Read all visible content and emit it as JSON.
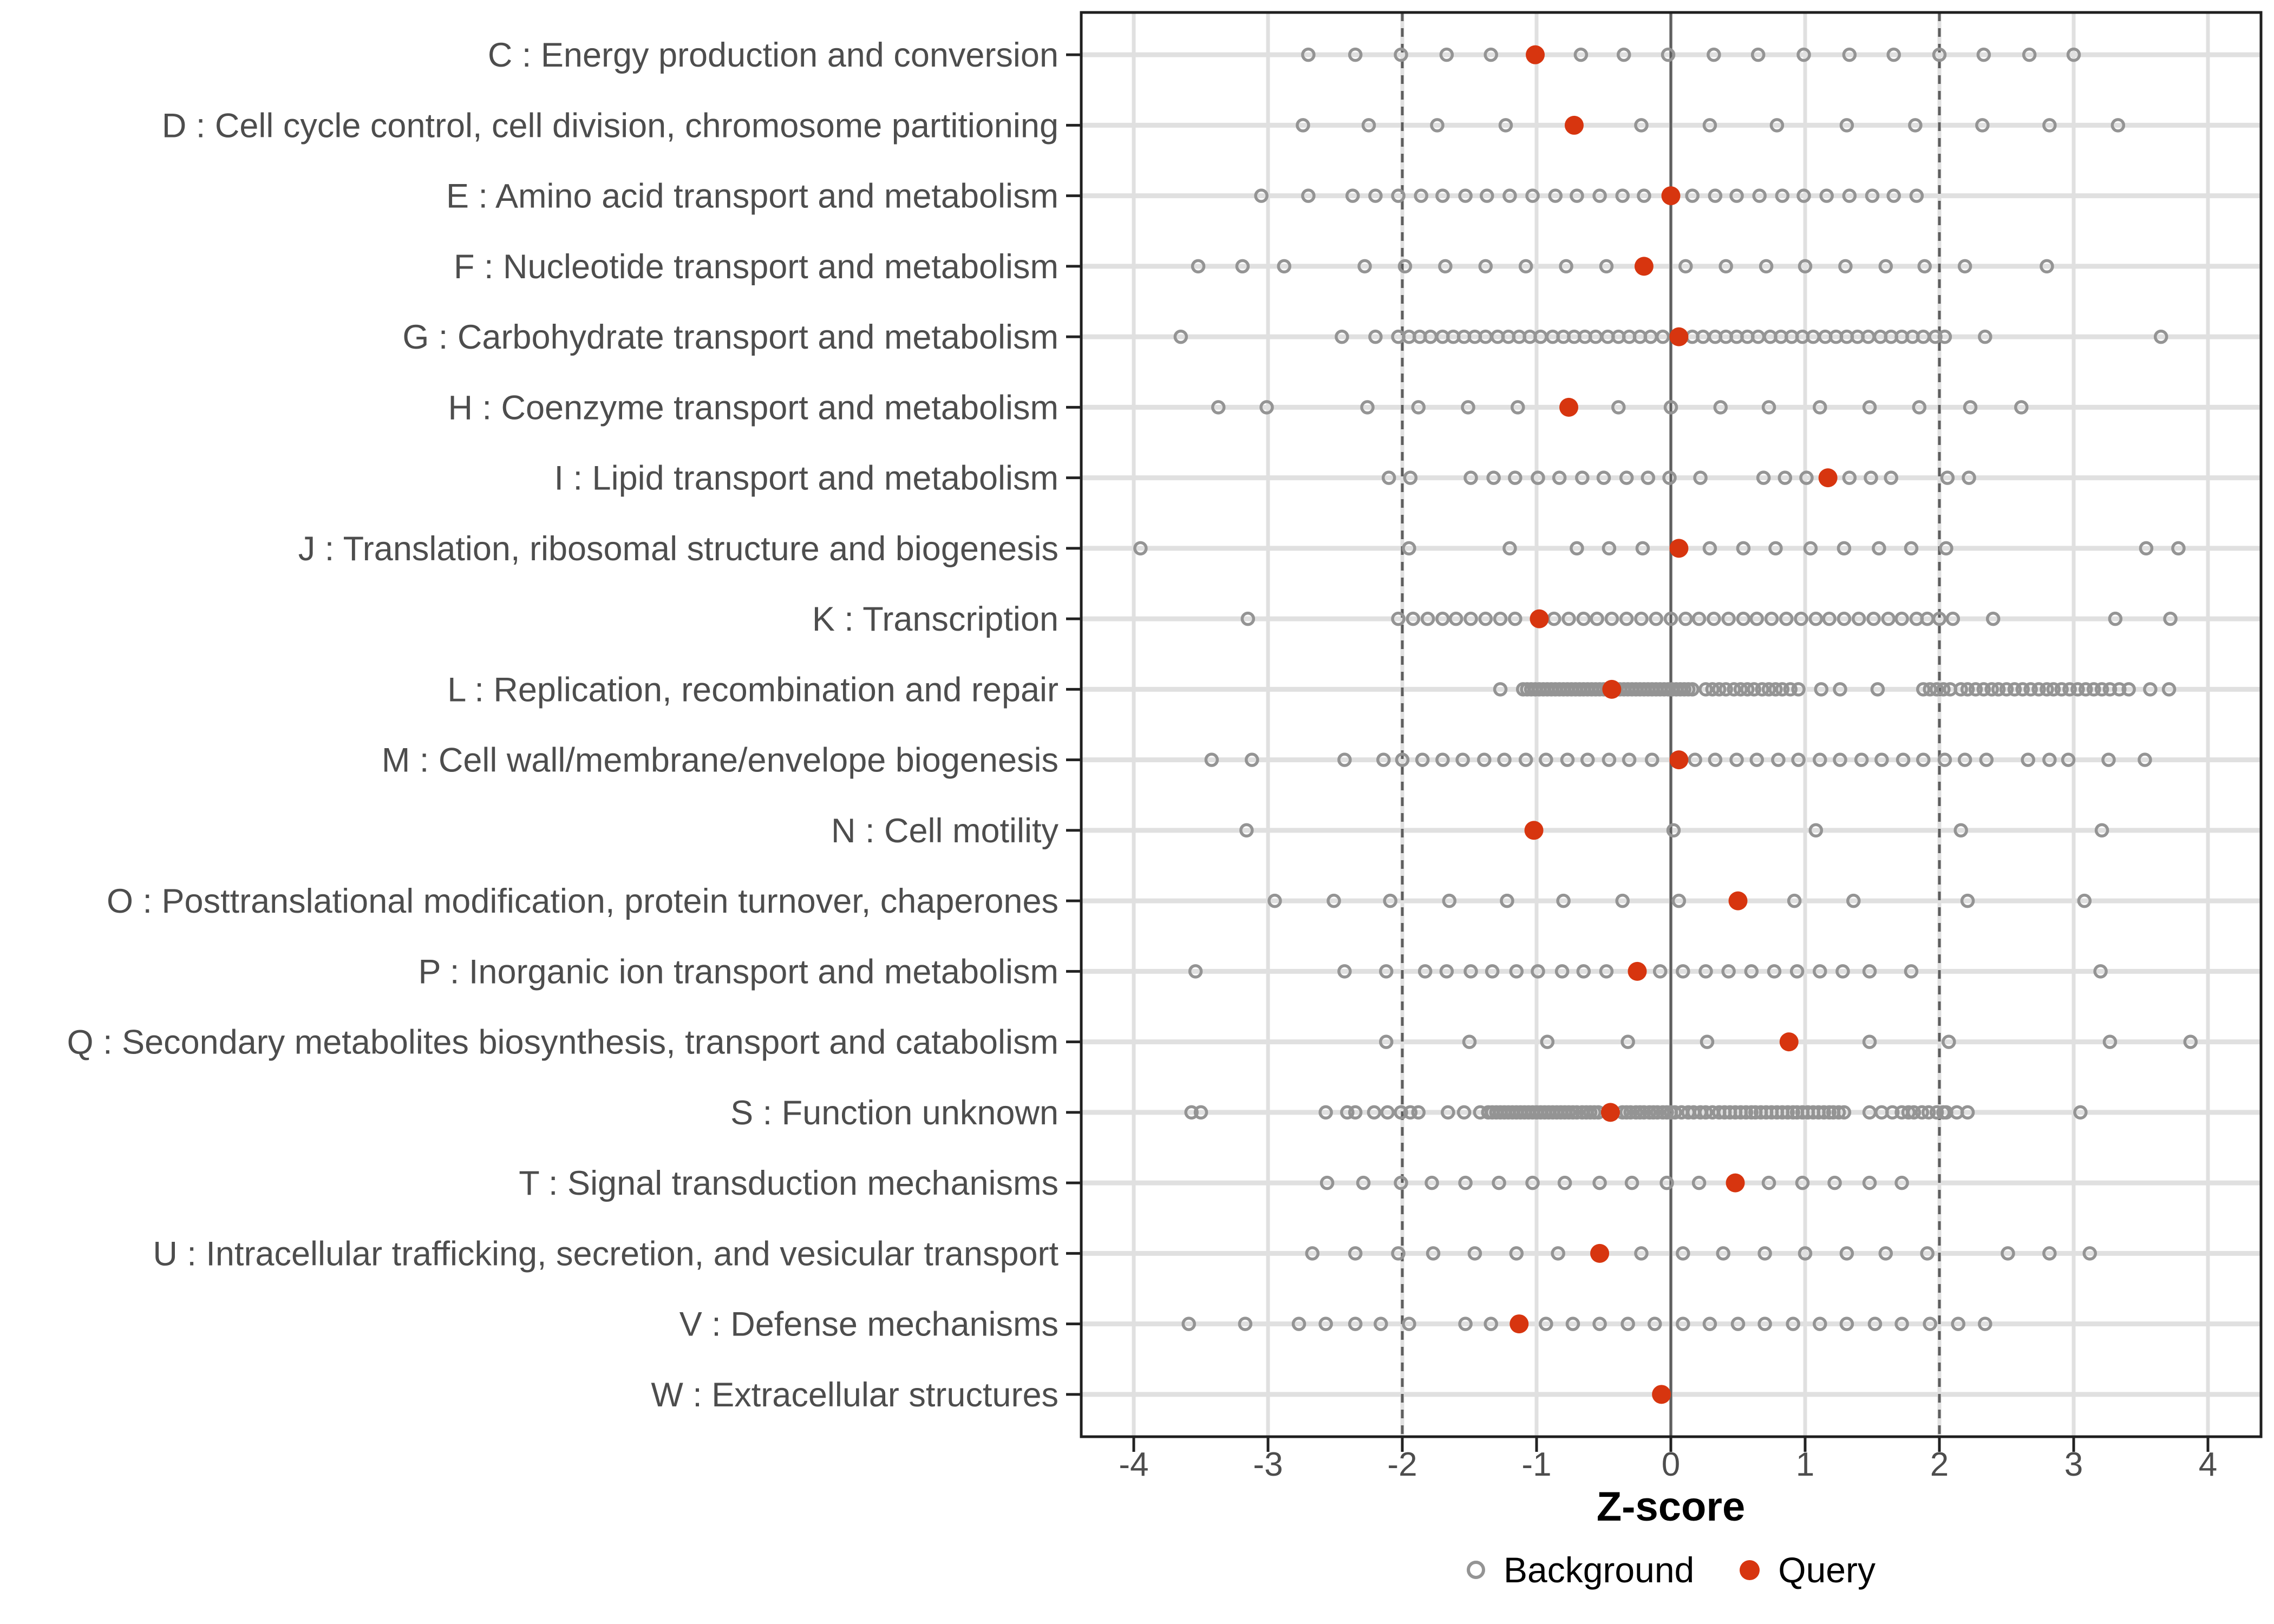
{
  "legend": {
    "background_label": "Background",
    "query_label": "Query"
  },
  "style": {
    "query_color": "#D7350F",
    "background_stroke": "#949494",
    "gridline_color": "#E0E0E0",
    "refline_color": "#5E5E5E",
    "axis_text_color": "#4D4D4D",
    "tick_color": "#222222",
    "panel_border_color": "#1F1F1F",
    "panel_background": "#FFFFFF"
  },
  "chart_data": {
    "type": "scatter",
    "title": "",
    "xlabel": "Z-score",
    "ylabel": "",
    "xlim": [
      -4.39,
      4.39
    ],
    "x_ticks": [
      -4,
      -3,
      -2,
      -1,
      0,
      1,
      2,
      3,
      4
    ],
    "grid": "major-vertical-and-row-lines",
    "legend_position": "bottom-center",
    "reference_lines": {
      "solid": [
        0
      ],
      "dashed": [
        -2,
        2
      ]
    },
    "series_legend": [
      "Background",
      "Query"
    ],
    "rows": [
      {
        "label": "C : Energy production and conversion",
        "query": -1.01,
        "background": [
          -2.7,
          -2.35,
          -2.01,
          -1.67,
          -1.34,
          -0.67,
          -0.35,
          -0.02,
          0.32,
          0.65,
          0.99,
          1.33,
          1.66,
          2.0,
          2.33,
          2.67,
          3.0
        ]
      },
      {
        "label": "D : Cell cycle control, cell division, chromosome partitioning",
        "query": -0.72,
        "background": [
          -2.74,
          -2.25,
          -1.74,
          -1.23,
          -0.22,
          0.29,
          0.79,
          1.31,
          1.82,
          2.32,
          2.82,
          3.33
        ]
      },
      {
        "label": "E : Amino acid transport and metabolism",
        "query": 0.0,
        "background": [
          -3.05,
          -2.7,
          -2.37,
          -2.2,
          -2.03,
          -1.86,
          -1.7,
          -1.53,
          -1.37,
          -1.2,
          -1.03,
          -0.86,
          -0.7,
          -0.53,
          -0.36,
          -0.2,
          0.16,
          0.33,
          0.49,
          0.66,
          0.83,
          0.99,
          1.16,
          1.33,
          1.5,
          1.66,
          1.83
        ]
      },
      {
        "label": "F : Nucleotide transport and metabolism",
        "query": -0.2,
        "background": [
          -3.52,
          -3.19,
          -2.88,
          -2.28,
          -1.98,
          -1.68,
          -1.38,
          -1.08,
          -0.78,
          -0.48,
          0.11,
          0.41,
          0.71,
          1.0,
          1.3,
          1.6,
          1.89,
          2.19,
          2.8
        ]
      },
      {
        "label": "G : Carbohydrate transport and metabolism",
        "query": 0.06,
        "background": [
          -3.65,
          -2.45,
          -2.2,
          -2.03,
          -1.95,
          -1.87,
          -1.79,
          -1.7,
          -1.62,
          -1.54,
          -1.46,
          -1.38,
          -1.29,
          -1.21,
          -1.13,
          -1.05,
          -0.97,
          -0.88,
          -0.8,
          -0.72,
          -0.64,
          -0.56,
          -0.47,
          -0.39,
          -0.31,
          -0.23,
          -0.15,
          -0.06,
          0.16,
          0.24,
          0.33,
          0.41,
          0.49,
          0.57,
          0.65,
          0.74,
          0.82,
          0.9,
          0.98,
          1.06,
          1.15,
          1.23,
          1.31,
          1.39,
          1.47,
          1.56,
          1.64,
          1.72,
          1.8,
          1.88,
          1.97,
          2.04,
          2.34,
          3.65
        ]
      },
      {
        "label": "H : Coenzyme transport and metabolism",
        "query": -0.76,
        "background": [
          -3.37,
          -3.01,
          -2.26,
          -1.88,
          -1.51,
          -1.14,
          -0.39,
          0.0,
          0.37,
          0.73,
          1.11,
          1.48,
          1.85,
          2.23,
          2.61
        ]
      },
      {
        "label": "I : Lipid transport and metabolism",
        "query": 1.17,
        "background": [
          -2.1,
          -1.94,
          -1.49,
          -1.32,
          -1.16,
          -0.99,
          -0.83,
          -0.66,
          -0.5,
          -0.33,
          -0.17,
          -0.01,
          0.22,
          0.69,
          0.85,
          1.01,
          1.33,
          1.49,
          1.64,
          2.06,
          2.22
        ]
      },
      {
        "label": "J : Translation, ribosomal structure and biogenesis",
        "query": 0.06,
        "background": [
          -3.95,
          -1.95,
          -1.2,
          -0.7,
          -0.46,
          -0.21,
          0.29,
          0.54,
          0.78,
          1.04,
          1.29,
          1.55,
          1.79,
          2.05,
          3.54,
          3.78
        ]
      },
      {
        "label": "K : Transcription",
        "query": -0.98,
        "background": [
          -3.15,
          -2.03,
          -1.92,
          -1.81,
          -1.7,
          -1.6,
          -1.49,
          -1.38,
          -1.27,
          -1.16,
          -0.87,
          -0.76,
          -0.65,
          -0.55,
          -0.44,
          -0.33,
          -0.22,
          -0.11,
          0.0,
          0.11,
          0.21,
          0.32,
          0.43,
          0.54,
          0.64,
          0.75,
          0.86,
          0.97,
          1.08,
          1.18,
          1.29,
          1.4,
          1.51,
          1.62,
          1.72,
          1.83,
          1.91,
          2.0,
          2.1,
          2.4,
          3.31,
          3.72
        ]
      },
      {
        "label": "L : Replication, recombination and repair",
        "query": -0.44,
        "background": [
          -1.27,
          -1.1,
          -1.07,
          -1.04,
          -1.01,
          -0.98,
          -0.95,
          -0.92,
          -0.89,
          -0.86,
          -0.83,
          -0.8,
          -0.77,
          -0.74,
          -0.71,
          -0.68,
          -0.65,
          -0.62,
          -0.59,
          -0.56,
          -0.53,
          -0.5,
          -0.47,
          -0.41,
          -0.38,
          -0.35,
          -0.32,
          -0.29,
          -0.26,
          -0.23,
          -0.2,
          -0.17,
          -0.14,
          -0.11,
          -0.08,
          -0.05,
          -0.02,
          0.01,
          0.04,
          0.07,
          0.1,
          0.13,
          0.16,
          0.26,
          0.31,
          0.36,
          0.41,
          0.47,
          0.52,
          0.57,
          0.62,
          0.68,
          0.73,
          0.78,
          0.83,
          0.89,
          0.95,
          1.12,
          1.26,
          1.54,
          1.88,
          1.93,
          1.98,
          2.03,
          2.08,
          2.16,
          2.21,
          2.27,
          2.33,
          2.39,
          2.44,
          2.5,
          2.56,
          2.62,
          2.68,
          2.74,
          2.8,
          2.85,
          2.91,
          2.97,
          3.03,
          3.09,
          3.15,
          3.21,
          3.27,
          3.34,
          3.41,
          3.57,
          3.71
        ]
      },
      {
        "label": "M : Cell wall/membrane/envelope biogenesis",
        "query": 0.06,
        "background": [
          -3.42,
          -3.12,
          -2.43,
          -2.14,
          -2.0,
          -1.85,
          -1.7,
          -1.55,
          -1.39,
          -1.24,
          -1.08,
          -0.93,
          -0.77,
          -0.62,
          -0.46,
          -0.31,
          -0.14,
          0.18,
          0.33,
          0.49,
          0.64,
          0.8,
          0.95,
          1.11,
          1.26,
          1.42,
          1.57,
          1.73,
          1.88,
          2.04,
          2.19,
          2.35,
          2.66,
          2.82,
          2.96,
          3.26,
          3.53
        ]
      },
      {
        "label": "N : Cell motility",
        "query": -1.02,
        "background": [
          -3.16,
          0.02,
          1.08,
          2.16,
          3.21
        ]
      },
      {
        "label": "O : Posttranslational modification, protein turnover, chaperones",
        "query": 0.5,
        "background": [
          -2.95,
          -2.51,
          -2.09,
          -1.65,
          -1.22,
          -0.8,
          -0.36,
          0.06,
          0.92,
          1.36,
          2.21,
          3.08
        ]
      },
      {
        "label": "P : Inorganic ion transport and metabolism",
        "query": -0.25,
        "background": [
          -3.54,
          -2.43,
          -2.12,
          -1.83,
          -1.67,
          -1.49,
          -1.33,
          -1.15,
          -0.99,
          -0.81,
          -0.65,
          -0.48,
          -0.08,
          0.09,
          0.26,
          0.43,
          0.6,
          0.77,
          0.94,
          1.11,
          1.28,
          1.48,
          1.79,
          3.2
        ]
      },
      {
        "label": "Q : Secondary metabolites biosynthesis, transport and catabolism",
        "query": 0.88,
        "background": [
          -2.12,
          -1.5,
          -0.92,
          -0.32,
          0.27,
          1.48,
          2.07,
          3.27,
          3.87
        ]
      },
      {
        "label": "S : Function unknown",
        "query": -0.45,
        "background": [
          -3.57,
          -3.5,
          -2.57,
          -2.41,
          -2.35,
          -2.21,
          -2.11,
          -2.01,
          -1.94,
          -1.88,
          -1.66,
          -1.54,
          -1.42,
          -1.36,
          -1.33,
          -1.3,
          -1.27,
          -1.24,
          -1.21,
          -1.18,
          -1.15,
          -1.12,
          -1.09,
          -1.06,
          -1.03,
          -1.0,
          -0.97,
          -0.94,
          -0.91,
          -0.88,
          -0.85,
          -0.82,
          -0.79,
          -0.76,
          -0.73,
          -0.7,
          -0.66,
          -0.63,
          -0.6,
          -0.57,
          -0.54,
          -0.36,
          -0.33,
          -0.3,
          -0.26,
          -0.23,
          -0.2,
          -0.16,
          -0.13,
          -0.1,
          -0.06,
          -0.03,
          0.0,
          0.03,
          0.08,
          0.13,
          0.17,
          0.22,
          0.26,
          0.31,
          0.36,
          0.4,
          0.44,
          0.48,
          0.52,
          0.56,
          0.6,
          0.63,
          0.67,
          0.71,
          0.75,
          0.79,
          0.83,
          0.87,
          0.91,
          0.94,
          0.98,
          1.02,
          1.06,
          1.1,
          1.14,
          1.18,
          1.21,
          1.25,
          1.29,
          1.48,
          1.57,
          1.65,
          1.72,
          1.77,
          1.81,
          1.87,
          1.92,
          1.98,
          2.03,
          2.05,
          2.13,
          2.21,
          3.05
        ]
      },
      {
        "label": "T : Signal transduction mechanisms",
        "query": 0.48,
        "background": [
          -2.56,
          -2.29,
          -2.01,
          -1.78,
          -1.53,
          -1.28,
          -1.03,
          -0.79,
          -0.53,
          -0.29,
          -0.03,
          0.21,
          0.73,
          0.98,
          1.22,
          1.48,
          1.72
        ]
      },
      {
        "label": "U : Intracellular trafficking, secretion, and vesicular transport",
        "query": -0.53,
        "background": [
          -2.67,
          -2.35,
          -2.03,
          -1.77,
          -1.46,
          -1.15,
          -0.84,
          -0.22,
          0.09,
          0.39,
          0.7,
          1.0,
          1.31,
          1.6,
          1.91,
          2.51,
          2.82,
          3.12
        ]
      },
      {
        "label": "V : Defense mechanisms",
        "query": -1.13,
        "background": [
          -3.59,
          -3.17,
          -2.77,
          -2.57,
          -2.35,
          -2.16,
          -1.95,
          -1.53,
          -1.34,
          -0.93,
          -0.73,
          -0.53,
          -0.32,
          -0.12,
          0.09,
          0.29,
          0.5,
          0.7,
          0.91,
          1.11,
          1.31,
          1.52,
          1.72,
          1.93,
          2.14,
          2.34
        ]
      },
      {
        "label": "W : Extracellular structures",
        "query": -0.07,
        "background": []
      }
    ]
  }
}
